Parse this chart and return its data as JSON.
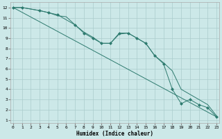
{
  "bg_color": "#cce8e8",
  "grid_color": "#aacccc",
  "line_color": "#2d7a6e",
  "xlabel": "Humidex (Indice chaleur)",
  "xticks": [
    0,
    1,
    2,
    3,
    4,
    5,
    6,
    7,
    8,
    9,
    10,
    11,
    12,
    13,
    14,
    15,
    16,
    17,
    18,
    19,
    20,
    21,
    22,
    23
  ],
  "yticks": [
    1,
    2,
    3,
    4,
    5,
    6,
    7,
    8,
    9,
    10,
    11,
    12
  ],
  "xlim": [
    -0.3,
    23.3
  ],
  "ylim": [
    0.7,
    12.5
  ],
  "regline_x": [
    0,
    23
  ],
  "regline_y": [
    12.0,
    1.3
  ],
  "curve1_x": [
    0,
    1,
    3,
    4,
    5,
    6,
    7,
    8,
    9,
    10,
    11,
    12,
    13,
    14,
    15,
    16,
    17,
    18,
    19,
    20,
    21,
    22,
    23
  ],
  "curve1_y": [
    12.0,
    12.0,
    11.7,
    11.5,
    11.2,
    11.1,
    10.3,
    9.6,
    9.1,
    8.5,
    8.5,
    9.4,
    9.5,
    9.0,
    8.5,
    7.3,
    6.6,
    5.8,
    4.0,
    3.5,
    3.0,
    2.5,
    1.4
  ],
  "curve2_x": [
    0,
    1,
    3,
    4,
    5,
    7,
    8,
    9,
    10,
    11,
    12,
    13,
    14,
    15,
    16,
    17,
    18,
    19,
    20,
    21,
    22,
    23
  ],
  "curve2_y": [
    12.0,
    12.0,
    11.7,
    11.5,
    11.3,
    10.3,
    9.5,
    9.0,
    8.5,
    8.5,
    9.5,
    9.5,
    9.0,
    8.5,
    7.3,
    6.5,
    4.0,
    2.6,
    3.0,
    2.5,
    2.2,
    1.3
  ],
  "font_family": "monospace"
}
